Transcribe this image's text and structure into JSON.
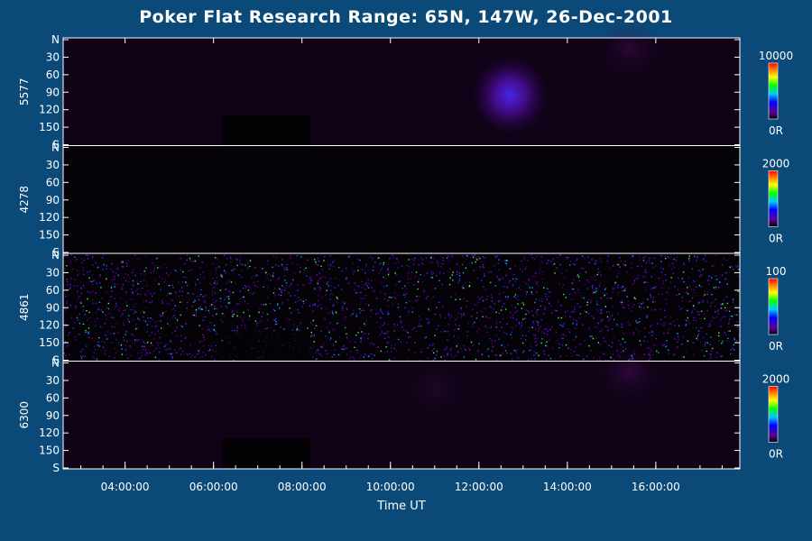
{
  "chart_data": {
    "type": "heatmap",
    "title": "Poker Flat Research Range: 65N, 147W, 26-Dec-2001",
    "xlabel": "Time UT",
    "x_ticks": [
      "04:00:00",
      "06:00:00",
      "08:00:00",
      "10:00:00",
      "12:00:00",
      "14:00:00",
      "16:00:00"
    ],
    "x_range_hours": [
      2.6,
      17.9
    ],
    "y_ticks": [
      "N",
      "30",
      "60",
      "90",
      "120",
      "150",
      "S"
    ],
    "y_range_deg": [
      0,
      180
    ],
    "panels": [
      {
        "wavelength": "5577",
        "scale_max": "10000",
        "scale_min": "0R",
        "features": [
          {
            "time_hours": 12.7,
            "angle_deg": 95,
            "intensity": 0.6
          },
          {
            "time_hours": 15.4,
            "angle_deg": 15,
            "intensity": 0.25
          }
        ]
      },
      {
        "wavelength": "4278",
        "scale_max": "2000",
        "scale_min": "0R",
        "features": []
      },
      {
        "wavelength": "4861",
        "scale_max": "100",
        "scale_min": "0R",
        "features": []
      },
      {
        "wavelength": "6300",
        "scale_max": "2000",
        "scale_min": "0R",
        "features": [
          {
            "time_hours": 15.4,
            "angle_deg": 15,
            "intensity": 0.3
          },
          {
            "time_hours": 11.0,
            "angle_deg": 45,
            "intensity": 0.15
          }
        ]
      }
    ]
  }
}
